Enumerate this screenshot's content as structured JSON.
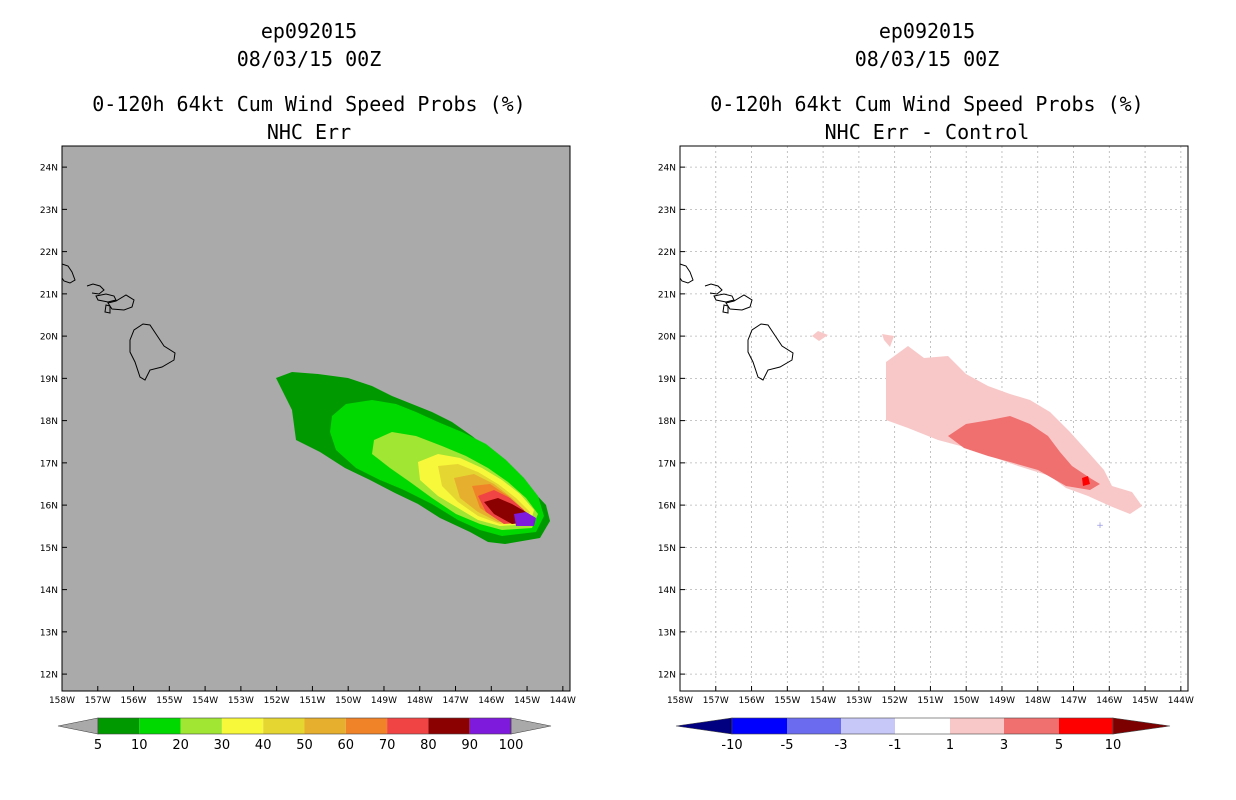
{
  "left": {
    "storm": "ep092015",
    "datetime": "08/03/15 00Z",
    "product": "0-120h 64kt Cum Wind Speed Probs (%)",
    "subtitle": "NHC Err",
    "colorbar": {
      "labels": [
        "5",
        "10",
        "20",
        "30",
        "40",
        "50",
        "60",
        "70",
        "80",
        "90",
        "100"
      ],
      "colors": [
        "#a9a9a9",
        "#009a00",
        "#00d900",
        "#a0e632",
        "#f8f83a",
        "#e6d632",
        "#e6af2e",
        "#f08228",
        "#f04444",
        "#8b0000",
        "#7d1adc",
        "#a9a9a9"
      ]
    }
  },
  "right": {
    "storm": "ep092015",
    "datetime": "08/03/15 00Z",
    "product": "0-120h 64kt Cum Wind Speed Probs (%)",
    "subtitle": "NHC Err - Control",
    "colorbar": {
      "labels": [
        "-10",
        "-5",
        "-3",
        "-1",
        "1",
        "3",
        "5",
        "10"
      ],
      "colors": [
        "#000080",
        "#0000ff",
        "#6b6bf0",
        "#c8c8f8",
        "#ffffff",
        "#f8c8c8",
        "#f07070",
        "#ff0000",
        "#7d0000"
      ]
    }
  },
  "axes": {
    "lat_labels": [
      "24N",
      "23N",
      "22N",
      "21N",
      "20N",
      "19N",
      "18N",
      "17N",
      "16N",
      "15N",
      "14N",
      "13N",
      "12N"
    ],
    "lon_labels": [
      "158W",
      "157W",
      "156W",
      "155W",
      "154W",
      "153W",
      "152W",
      "151W",
      "150W",
      "149W",
      "148W",
      "147W",
      "146W",
      "145W",
      "144W"
    ],
    "lat_range": [
      11.6,
      24.5
    ],
    "lon_range": [
      -158.0,
      -143.8
    ]
  },
  "colors": {
    "map_background": "#aaaaaa",
    "grid": "#b4b4b4"
  }
}
